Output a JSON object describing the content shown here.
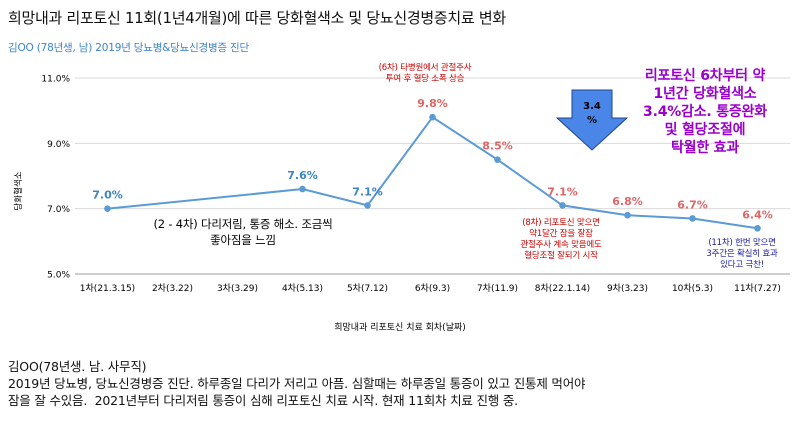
{
  "chart_data": {
    "type": "line",
    "title": "희망내과 리포토신 11회(1년4개월)에 따른 당화혈색소 및 당뇨신경병증치료 변화",
    "subtitle": "김OO (78년생, 남) 2019년 당뇨병&당뇨신경병증 진단",
    "xlabel": "희망내과 리포토신 치료 회차(날짜)",
    "ylabel": "당화혈색소",
    "categories": [
      "1차(21.3.15)",
      "2차(3.22)",
      "3차(3.29)",
      "4차(5.13)",
      "5차(7.12)",
      "6차(9.3)",
      "7차(11.9)",
      "8차(22.1.14)",
      "9차(3.23)",
      "10차(5.3)",
      "11차(7.27)"
    ],
    "series": [
      {
        "values": [
          7.0,
          null,
          null,
          7.6,
          7.1,
          9.8,
          8.5,
          7.1,
          6.8,
          6.7,
          6.4
        ],
        "color": "#5b9bd5"
      }
    ],
    "data_labels": [
      "7.0%",
      "",
      "",
      "7.6%",
      "7.1%",
      "9.8%",
      "8.5%",
      "7.1%",
      "6.8%",
      "6.7%",
      "6.4%"
    ],
    "data_label_colors": [
      "#3d85c6",
      "",
      "",
      "#3d85c6",
      "#3d85c6",
      "#e06666",
      "#e06666",
      "#e06666",
      "#e06666",
      "#e06666",
      "#e06666"
    ],
    "ylim": [
      5.0,
      11.0
    ],
    "yticks": [
      "5.0%",
      "7.0%",
      "9.0%",
      "11.0%"
    ],
    "ytick_values": [
      5.0,
      7.0,
      9.0,
      11.0
    ],
    "grid": true,
    "annotations": {
      "six_note": "(6차) 타병원에서 관절주사\n투여 후 혈당 소폭 상승",
      "two_four_note": "(2 - 4차) 다리저림, 통증 해소. 조금씩\n좋아짐을 느낌",
      "eight_note": "(8차) 리포토신 맞으면\n약1달간 잠을 잘잠\n관절주사 계속 맞음에도\n혈당조절 잘되기 시작",
      "eleven_note": "(11차) 한번 맞으면\n3주간은 확실히 효과\n있다고 극찬!",
      "summary": "리포토신 6차부터 약\n1년간 당화혈색소\n3.4%감소. 통증완화\n및 혈당조절에\n탁월한 효과",
      "arrow_label": "3.4\n%"
    },
    "colors": {
      "line": "#5b9bd5",
      "arrow_fill": "#4a86e8",
      "arrow_stroke": "#1c4587",
      "grid": "#d9d9d9"
    }
  },
  "footer": {
    "line1": "김OO(78년생. 남. 사무직)",
    "line2": "2019년 당뇨병, 당뇨신경병증 진단. 하루종일 다리가 저리고 아픔. 심할때는 하루종일 통증이 있고 진통제 먹어야",
    "line3": "잠을 잘 수있음.  2021년부터 다리저림 통증이 심해 리포토신 치료 시작. 현재 11회차 치료 진행 중."
  }
}
